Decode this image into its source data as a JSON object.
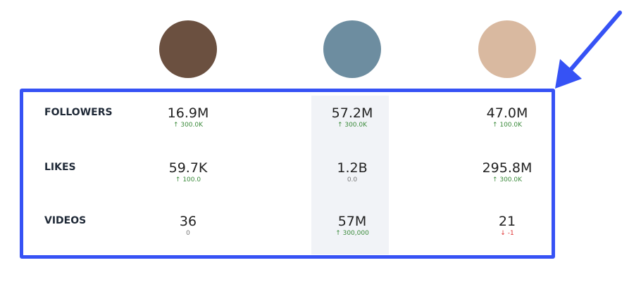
{
  "profiles": [
    {
      "avatar": "bear-hood-person",
      "bg": "#6b5040"
    },
    {
      "avatar": "pixel-punk-red-hair",
      "bg": "#6d8da0"
    },
    {
      "avatar": "blonde-person",
      "bg": "#d9b9a0"
    }
  ],
  "rows": [
    {
      "label": "FOLLOWERS",
      "cells": [
        {
          "value": "16.9M",
          "change": "300.0K",
          "dir": "up"
        },
        {
          "value": "57.2M",
          "change": "300.0K",
          "dir": "up"
        },
        {
          "value": "47.0M",
          "change": "100.0K",
          "dir": "up"
        }
      ]
    },
    {
      "label": "LIKES",
      "cells": [
        {
          "value": "59.7K",
          "change": "100.0",
          "dir": "up"
        },
        {
          "value": "1.2B",
          "change": "0.0",
          "dir": "neutral"
        },
        {
          "value": "295.8M",
          "change": "300.0K",
          "dir": "up"
        }
      ]
    },
    {
      "label": "VIDEOS",
      "cells": [
        {
          "value": "36",
          "change": "0",
          "dir": "neutral"
        },
        {
          "value": "57M",
          "change": "300,000",
          "dir": "up"
        },
        {
          "value": "21",
          "change": "-1",
          "dir": "down"
        }
      ]
    }
  ],
  "colors": {
    "highlight_border": "#3652f5",
    "up": "#3a8a3a",
    "down": "#e03030",
    "arrow": "#3652f5"
  }
}
